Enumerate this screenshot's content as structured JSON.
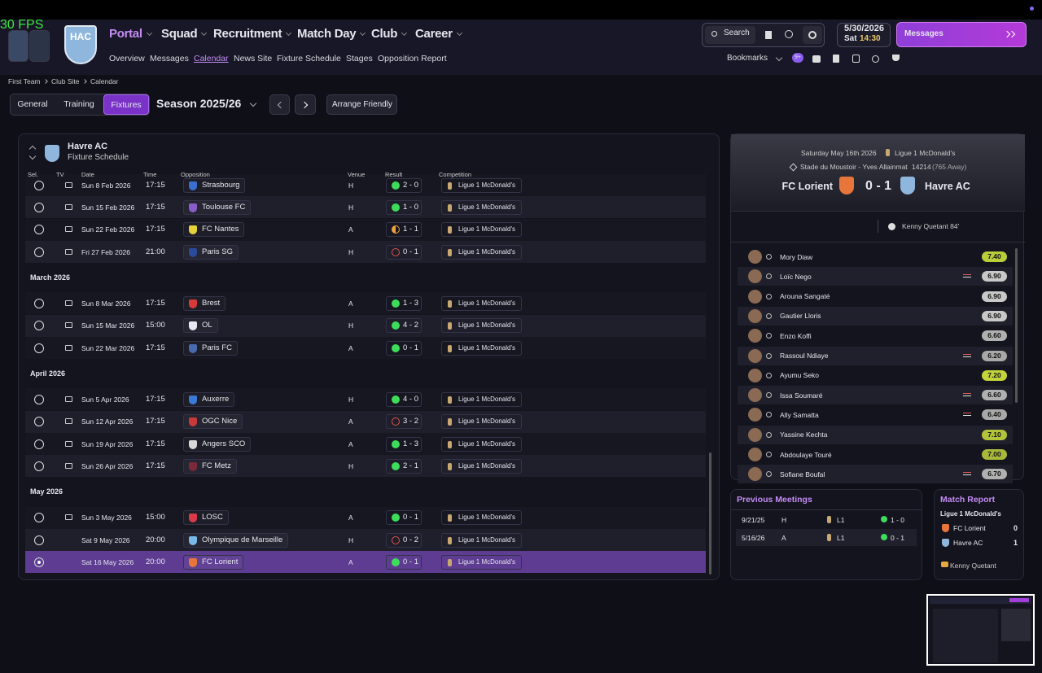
{
  "fps": "30 FPS",
  "club": {
    "logo_text": "HAC"
  },
  "nav": {
    "main": [
      "Portal",
      "Squad",
      "Recruitment",
      "Match Day",
      "Club",
      "Career"
    ],
    "active_main": 0,
    "sub": [
      "Overview",
      "Messages",
      "Calendar",
      "News Site",
      "Fixture Schedule",
      "Stages",
      "Opposition Report"
    ],
    "active_sub": 2
  },
  "top_right": {
    "search": "Search",
    "date": "5/30/2026",
    "day": "Sat",
    "time": "14:30",
    "messages": "Messages",
    "bookmarks": "Bookmarks",
    "badge": "9+"
  },
  "breadcrumb": [
    "First Team",
    "Club Site",
    "Calendar"
  ],
  "tabs": {
    "items": [
      "General",
      "Training",
      "Fixtures"
    ],
    "active": 2,
    "season": "Season 2025/26",
    "arrange": "Arrange Friendly"
  },
  "fixtures": {
    "team": "Havre AC",
    "title": "Fixture Schedule",
    "columns": [
      "Sel.",
      "TV",
      "Date",
      "Time",
      "Opposition",
      "Venue",
      "Result",
      "Competition"
    ],
    "groups": [
      {
        "rows": [
          {
            "date": "Sun 8 Feb 2026",
            "time": "17:15",
            "opposition": "Strasbourg",
            "venue": "H",
            "result": "2 - 0",
            "outcome": "W",
            "competition": "Ligue 1 McDonald's",
            "tv": true,
            "crest": "#3a6fd0"
          },
          {
            "date": "Sun 15 Feb 2026",
            "time": "17:15",
            "opposition": "Toulouse FC",
            "venue": "H",
            "result": "1 - 0",
            "outcome": "W",
            "competition": "Ligue 1 McDonald's",
            "tv": true,
            "crest": "#8a5cc8"
          },
          {
            "date": "Sun 22 Feb 2026",
            "time": "17:15",
            "opposition": "FC Nantes",
            "venue": "A",
            "result": "1 - 1",
            "outcome": "D",
            "competition": "Ligue 1 McDonald's",
            "tv": true,
            "crest": "#e5d23a"
          },
          {
            "date": "Fri 27 Feb 2026",
            "time": "21:00",
            "opposition": "Paris SG",
            "venue": "H",
            "result": "0 - 1",
            "outcome": "L",
            "competition": "Ligue 1 McDonald's",
            "tv": true,
            "crest": "#2a4a9a"
          }
        ]
      },
      {
        "month": "March 2026",
        "rows": [
          {
            "date": "Sun 8 Mar 2026",
            "time": "17:15",
            "opposition": "Brest",
            "venue": "A",
            "result": "1 - 3",
            "outcome": "W",
            "competition": "Ligue 1 McDonald's",
            "tv": true,
            "crest": "#d83a3a"
          },
          {
            "date": "Sun 15 Mar 2026",
            "time": "15:00",
            "opposition": "OL",
            "venue": "H",
            "result": "4 - 2",
            "outcome": "W",
            "competition": "Ligue 1 McDonald's",
            "tv": true,
            "crest": "#e8e8f0"
          },
          {
            "date": "Sun 22 Mar 2026",
            "time": "17:15",
            "opposition": "Paris FC",
            "venue": "A",
            "result": "0 - 1",
            "outcome": "W",
            "competition": "Ligue 1 McDonald's",
            "tv": true,
            "crest": "#4a6ab0"
          }
        ]
      },
      {
        "month": "April 2026",
        "rows": [
          {
            "date": "Sun 5 Apr 2026",
            "time": "17:15",
            "opposition": "Auxerre",
            "venue": "H",
            "result": "4 - 0",
            "outcome": "W",
            "competition": "Ligue 1 McDonald's",
            "tv": true,
            "crest": "#3a7ad8"
          },
          {
            "date": "Sun 12 Apr 2026",
            "time": "17:15",
            "opposition": "OGC Nice",
            "venue": "A",
            "result": "3 - 2",
            "outcome": "L",
            "competition": "Ligue 1 McDonald's",
            "tv": true,
            "crest": "#c83a3a"
          },
          {
            "date": "Sun 19 Apr 2026",
            "time": "17:15",
            "opposition": "Angers SCO",
            "venue": "A",
            "result": "1 - 3",
            "outcome": "W",
            "competition": "Ligue 1 McDonald's",
            "tv": true,
            "crest": "#d8d8d8"
          },
          {
            "date": "Sun 26 Apr 2026",
            "time": "17:15",
            "opposition": "FC Metz",
            "venue": "H",
            "result": "2 - 1",
            "outcome": "W",
            "competition": "Ligue 1 McDonald's",
            "tv": true,
            "crest": "#7a2a3a"
          }
        ]
      },
      {
        "month": "May 2026",
        "rows": [
          {
            "date": "Sun 3 May 2026",
            "time": "15:00",
            "opposition": "LOSC",
            "venue": "A",
            "result": "0 - 1",
            "outcome": "W",
            "competition": "Ligue 1 McDonald's",
            "tv": true,
            "crest": "#d83a4a"
          },
          {
            "date": "Sat 9 May 2026",
            "time": "20:00",
            "opposition": "Olympique de Marseille",
            "venue": "H",
            "result": "0 - 2",
            "outcome": "L",
            "competition": "Ligue 1 McDonald's",
            "tv": false,
            "crest": "#7ab8e8"
          },
          {
            "date": "Sat 16 May 2026",
            "time": "20:00",
            "opposition": "FC Lorient",
            "venue": "A",
            "result": "0 - 1",
            "outcome": "W",
            "competition": "Ligue 1 McDonald's",
            "tv": false,
            "crest": "#e8763a",
            "selected": true
          }
        ]
      }
    ]
  },
  "match": {
    "date": "Saturday May 16th 2026",
    "competition": "Ligue 1 McDonald's",
    "stadium": "Stade du Moustoir - Yves Allainmat",
    "attendance": "14214",
    "away_fans": "(765 Away)",
    "home": "FC Lorient",
    "score": "0 - 1",
    "away": "Havre AC",
    "scorer": "Kenny Quetant 84'",
    "players": [
      {
        "name": "Mory Diaw",
        "rating": "7.40",
        "color": "#b9cc3a"
      },
      {
        "name": "Loïc Nego",
        "rating": "6.90",
        "color": "#c8c8c8",
        "sub": true
      },
      {
        "name": "Arouna Sangaté",
        "rating": "6.90",
        "color": "#c8c8c8"
      },
      {
        "name": "Gautier Lloris",
        "rating": "6.90",
        "color": "#c8c8c8"
      },
      {
        "name": "Enzo Koffi",
        "rating": "6.60",
        "color": "#b0b0b0"
      },
      {
        "name": "Rassoul Ndiaye",
        "rating": "6.20",
        "color": "#a8a8a8",
        "sub": true
      },
      {
        "name": "Ayumu Seko",
        "rating": "7.20",
        "color": "#c2d43a"
      },
      {
        "name": "Issa Soumaré",
        "rating": "6.60",
        "color": "#b0b0b0",
        "sub": true
      },
      {
        "name": "Ally Samatta",
        "rating": "6.40",
        "color": "#a8a8a8",
        "sub": true
      },
      {
        "name": "Yassine Kechta",
        "rating": "7.10",
        "color": "#b4c43a"
      },
      {
        "name": "Abdoulaye Touré",
        "rating": "7.00",
        "color": "#a8b83a"
      },
      {
        "name": "Sofiane Boufal",
        "rating": "6.70",
        "color": "#b0b0b0",
        "sub": true
      }
    ]
  },
  "previous_meetings": {
    "title": "Previous Meetings",
    "rows": [
      [
        "9/21/25",
        "H",
        "L1",
        "1 - 0"
      ],
      [
        "5/16/26",
        "A",
        "L1",
        "0 - 1"
      ]
    ]
  },
  "match_report": {
    "title": "Match Report",
    "competition": "Ligue 1 McDonald's",
    "teams": [
      [
        "FC Lorient",
        "0"
      ],
      [
        "Havre AC",
        "1"
      ]
    ],
    "scorer": "Kenny Quetant"
  }
}
